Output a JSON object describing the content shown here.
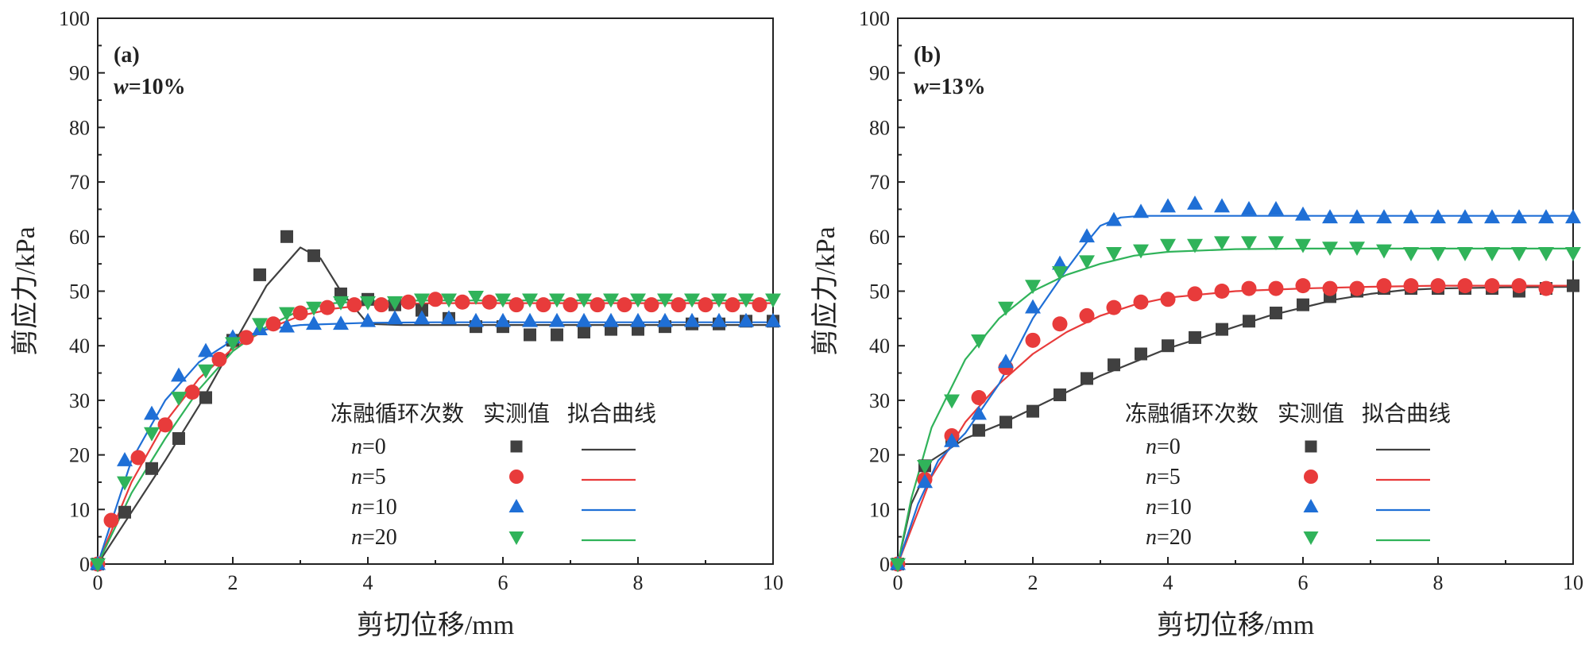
{
  "colors": {
    "n0": "#404040",
    "n5": "#e83b3b",
    "n10": "#1f6fd6",
    "n20": "#30b35a"
  },
  "legend": {
    "header_cycles": "冻融循环次数",
    "header_measured": "实测值",
    "header_fitted": "拟合曲线",
    "n_symbol": "n"
  },
  "chart_data": [
    {
      "type": "scatter",
      "panel_label": "(a)",
      "condition_symbol": "w",
      "condition_value": "=10%",
      "xlabel": "剪切位移/mm",
      "ylabel": "剪应力/kPa",
      "xlim": [
        0,
        10
      ],
      "ylim": [
        0,
        100
      ],
      "x_ticks": [
        "0",
        "2",
        "4",
        "6",
        "8",
        "10"
      ],
      "y_ticks": [
        "0",
        "10",
        "20",
        "30",
        "40",
        "50",
        "60",
        "70",
        "80",
        "90",
        "100"
      ],
      "legend_position": "bottom-right",
      "series": [
        {
          "key": "n0",
          "label": "=0",
          "marker": "square",
          "x": [
            0,
            0.4,
            0.8,
            1.2,
            1.6,
            2.0,
            2.4,
            2.8,
            3.2,
            3.6,
            4.0,
            4.4,
            4.8,
            5.2,
            5.6,
            6.0,
            6.4,
            6.8,
            7.2,
            7.6,
            8.0,
            8.4,
            8.8,
            9.2,
            9.6,
            10.0
          ],
          "y": [
            0,
            9.5,
            17.5,
            23,
            30.5,
            41,
            53,
            60,
            56.5,
            49.5,
            48.5,
            47.5,
            46.5,
            45,
            43.5,
            43.5,
            42,
            42,
            42.5,
            43,
            43,
            43.5,
            44,
            44,
            44.5,
            44.5
          ],
          "fit_x": [
            0,
            0.5,
            1.0,
            1.5,
            2.0,
            2.5,
            3.0,
            3.3,
            3.6,
            4.0,
            4.5,
            5.0,
            6.0,
            8.0,
            10.0
          ],
          "fit_y": [
            0,
            9.5,
            19,
            29,
            40,
            51,
            58,
            56,
            50,
            44,
            43.8,
            43.8,
            43.8,
            43.8,
            43.8
          ]
        },
        {
          "key": "n5",
          "label": "=5",
          "marker": "circle",
          "x": [
            0,
            0.2,
            0.6,
            1.0,
            1.4,
            1.8,
            2.2,
            2.6,
            3.0,
            3.4,
            3.8,
            4.2,
            4.6,
            5.0,
            5.4,
            5.8,
            6.2,
            6.6,
            7.0,
            7.4,
            7.8,
            8.2,
            8.6,
            9.0,
            9.4,
            9.8
          ],
          "y": [
            0,
            8,
            19.5,
            25.5,
            31.5,
            37.5,
            41.5,
            44,
            46,
            47,
            47.5,
            47.5,
            48,
            48.5,
            48,
            48,
            47.5,
            47.5,
            47.5,
            47.5,
            47.5,
            47.5,
            47.5,
            47.5,
            47.5,
            47.5
          ],
          "fit_x": [
            0,
            0.5,
            1.0,
            1.5,
            2.0,
            2.5,
            3.0,
            3.5,
            4.0,
            5.0,
            6.0,
            8.0,
            10.0
          ],
          "fit_y": [
            0,
            15,
            26,
            34,
            39.5,
            43,
            45.5,
            46.8,
            47.5,
            47.8,
            47.8,
            47.8,
            47.8
          ]
        },
        {
          "key": "n10",
          "label": "=10",
          "marker": "triangle-up",
          "x": [
            0,
            0.4,
            0.8,
            1.2,
            1.6,
            2.0,
            2.4,
            2.8,
            3.2,
            3.6,
            4.0,
            4.4,
            4.8,
            5.2,
            5.6,
            6.0,
            6.4,
            6.8,
            7.2,
            7.6,
            8.0,
            8.4,
            8.8,
            9.2,
            9.6,
            10.0
          ],
          "y": [
            0,
            19,
            27.5,
            34.5,
            39,
            41.5,
            43,
            43.5,
            44,
            44,
            44.5,
            45,
            45,
            45,
            44.5,
            44.5,
            44.5,
            44.5,
            44.5,
            44.5,
            44.5,
            44.5,
            44.5,
            44.5,
            44.5,
            44.5
          ],
          "fit_x": [
            0,
            0.5,
            1.0,
            1.5,
            2.0,
            2.5,
            3.0,
            4.0,
            5.0,
            10.0
          ],
          "fit_y": [
            0,
            19,
            30,
            37,
            41,
            43,
            43.8,
            44.2,
            44.3,
            44.3
          ]
        },
        {
          "key": "n20",
          "label": "=20",
          "marker": "triangle-down",
          "x": [
            0,
            0.4,
            0.8,
            1.2,
            1.6,
            2.0,
            2.4,
            2.8,
            3.2,
            3.6,
            4.0,
            4.4,
            4.8,
            5.2,
            5.6,
            6.0,
            6.4,
            6.8,
            7.2,
            7.6,
            8.0,
            8.4,
            8.8,
            9.2,
            9.6,
            10.0
          ],
          "y": [
            0,
            15,
            24,
            30.5,
            35.5,
            40.5,
            44,
            46,
            47,
            48,
            48,
            48,
            48.5,
            48.5,
            49,
            48.5,
            48.5,
            48.5,
            48.5,
            48.5,
            48.5,
            48.5,
            48.5,
            48.5,
            48.5,
            48.5
          ],
          "fit_x": [
            0,
            0.5,
            1.0,
            1.5,
            2.0,
            2.5,
            3.0,
            3.5,
            4.0,
            5.0,
            6.0,
            10.0
          ],
          "fit_y": [
            0,
            13,
            23,
            32,
            39,
            43.5,
            46.5,
            47.8,
            48.2,
            48.3,
            48.3,
            48.3
          ]
        }
      ]
    },
    {
      "type": "scatter",
      "panel_label": "(b)",
      "condition_symbol": "w",
      "condition_value": "=13%",
      "xlabel": "剪切位移/mm",
      "ylabel": "剪应力/kPa",
      "xlim": [
        0,
        10
      ],
      "ylim": [
        0,
        100
      ],
      "x_ticks": [
        "0",
        "2",
        "4",
        "6",
        "8",
        "10"
      ],
      "y_ticks": [
        "0",
        "10",
        "20",
        "30",
        "40",
        "50",
        "60",
        "70",
        "80",
        "90",
        "100"
      ],
      "legend_position": "bottom-right",
      "series": [
        {
          "key": "n0",
          "label": "=0",
          "marker": "square",
          "x": [
            0,
            0.4,
            0.8,
            1.2,
            1.6,
            2.0,
            2.4,
            2.8,
            3.2,
            3.6,
            4.0,
            4.4,
            4.8,
            5.2,
            5.6,
            6.0,
            6.4,
            6.8,
            7.2,
            7.6,
            8.0,
            8.4,
            8.8,
            9.2,
            9.6,
            10.0
          ],
          "y": [
            0,
            18,
            23,
            24.5,
            26,
            28,
            31,
            34,
            36.5,
            38.5,
            40,
            41.5,
            43,
            44.5,
            46,
            47.5,
            49,
            50,
            50.5,
            50.5,
            50.5,
            50.5,
            50.5,
            50,
            50.5,
            51
          ],
          "fit_x": [
            0,
            0.2,
            0.5,
            1.0,
            1.5,
            2.0,
            2.5,
            3.0,
            3.5,
            4.0,
            4.5,
            5.0,
            5.5,
            6.0,
            6.5,
            7.0,
            7.5,
            8.0,
            9.0,
            10.0
          ],
          "fit_y": [
            0,
            11,
            19,
            23,
            25.5,
            28.5,
            31.5,
            34.5,
            37,
            39.5,
            41.5,
            43.5,
            45.5,
            47,
            48.5,
            49.5,
            50.2,
            50.5,
            50.7,
            50.8
          ]
        },
        {
          "key": "n5",
          "label": "=5",
          "marker": "circle",
          "x": [
            0,
            0.4,
            0.8,
            1.2,
            1.6,
            2.0,
            2.4,
            2.8,
            3.2,
            3.6,
            4.0,
            4.4,
            4.8,
            5.2,
            5.6,
            6.0,
            6.4,
            6.8,
            7.2,
            7.6,
            8.0,
            8.4,
            8.8,
            9.2,
            9.6
          ],
          "y": [
            0,
            15.5,
            23.5,
            30.5,
            36,
            41,
            44,
            45.5,
            47,
            48,
            48.5,
            49.5,
            50,
            50.5,
            50.5,
            51,
            50.5,
            50.5,
            51,
            51,
            51,
            51,
            51,
            51,
            50.5
          ],
          "fit_x": [
            0,
            0.5,
            1.0,
            1.5,
            2.0,
            2.5,
            3.0,
            3.5,
            4.0,
            5.0,
            6.0,
            7.0,
            8.0,
            10.0
          ],
          "fit_y": [
            0,
            16,
            26,
            33,
            38.5,
            42.5,
            45.5,
            47.5,
            48.8,
            50,
            50.5,
            50.8,
            51,
            51
          ]
        },
        {
          "key": "n10",
          "label": "=10",
          "marker": "triangle-up",
          "x": [
            0,
            0.4,
            0.8,
            1.2,
            1.6,
            2.0,
            2.4,
            2.8,
            3.2,
            3.6,
            4.0,
            4.4,
            4.8,
            5.2,
            5.6,
            6.0,
            6.4,
            6.8,
            7.2,
            7.6,
            8.0,
            8.4,
            8.8,
            9.2,
            9.6,
            10.0
          ],
          "y": [
            0,
            15,
            22.5,
            27.5,
            37,
            47,
            55,
            60,
            63,
            64.5,
            65.5,
            66,
            65.5,
            65,
            65,
            64,
            63.5,
            63.5,
            63.5,
            63.5,
            63.5,
            63.5,
            63.5,
            63.5,
            63.5,
            63.5
          ],
          "fit_x": [
            0,
            0.3,
            0.6,
            1.0,
            1.5,
            2.0,
            2.5,
            2.8,
            3.0,
            3.3,
            3.6,
            4.0,
            5.0,
            10.0
          ],
          "fit_y": [
            0,
            11,
            19,
            24,
            33,
            45,
            54,
            59,
            62,
            63.5,
            63.8,
            63.8,
            63.8,
            63.8
          ]
        },
        {
          "key": "n20",
          "label": "=20",
          "marker": "triangle-down",
          "x": [
            0,
            0.4,
            0.8,
            1.2,
            1.6,
            2.0,
            2.4,
            2.8,
            3.2,
            3.6,
            4.0,
            4.4,
            4.8,
            5.2,
            5.6,
            6.0,
            6.4,
            6.8,
            7.2,
            7.6,
            8.0,
            8.4,
            8.8,
            9.2,
            9.6,
            10.0
          ],
          "y": [
            0,
            18,
            30,
            41,
            47,
            51,
            53.5,
            55.5,
            57,
            57.5,
            58.5,
            58.5,
            59,
            59,
            59,
            58.5,
            58,
            58,
            57.5,
            57,
            57,
            57,
            57,
            57,
            57,
            57
          ],
          "fit_x": [
            0,
            0.2,
            0.5,
            1.0,
            1.5,
            2.0,
            2.5,
            3.0,
            3.5,
            4.0,
            5.0,
            6.0,
            8.0,
            10.0
          ],
          "fit_y": [
            0,
            12,
            25,
            37.5,
            45,
            50,
            53,
            55,
            56.5,
            57.2,
            57.7,
            57.8,
            57.8,
            57.8
          ]
        }
      ]
    }
  ]
}
